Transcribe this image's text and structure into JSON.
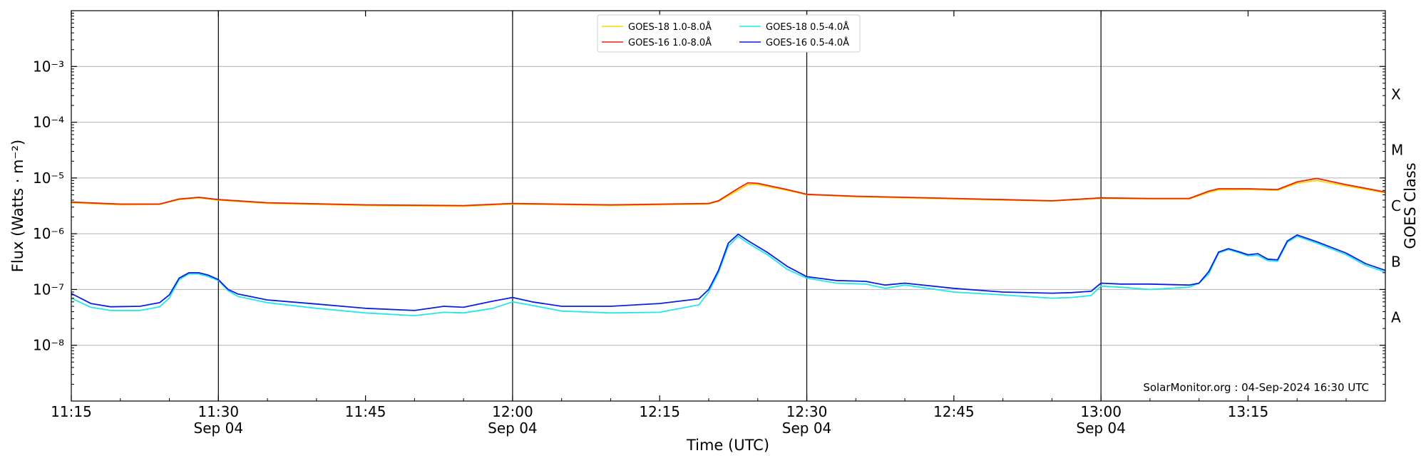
{
  "chart_data": {
    "type": "line",
    "xlabel": "Time (UTC)",
    "ylabel": "Flux (Watts · m⁻²)",
    "y2label": "GOES Class",
    "y_scale": "log",
    "ylim": [
      1e-09,
      0.01
    ],
    "xlim": [
      "2024-09-04T11:15",
      "2024-09-04T13:29"
    ],
    "x_ticks": [
      {
        "t": "2024-09-04T11:15",
        "label": "11:15",
        "sub": ""
      },
      {
        "t": "2024-09-04T11:30",
        "label": "11:30",
        "sub": "Sep 04"
      },
      {
        "t": "2024-09-04T11:45",
        "label": "11:45",
        "sub": ""
      },
      {
        "t": "2024-09-04T12:00",
        "label": "12:00",
        "sub": "Sep 04"
      },
      {
        "t": "2024-09-04T12:15",
        "label": "12:15",
        "sub": ""
      },
      {
        "t": "2024-09-04T12:30",
        "label": "12:30",
        "sub": "Sep 04"
      },
      {
        "t": "2024-09-04T12:45",
        "label": "12:45",
        "sub": ""
      },
      {
        "t": "2024-09-04T13:00",
        "label": "13:00",
        "sub": "Sep 04"
      },
      {
        "t": "2024-09-04T13:15",
        "label": "13:15",
        "sub": ""
      }
    ],
    "y_ticks": [
      {
        "exp": -8,
        "label": "10⁻⁸"
      },
      {
        "exp": -7,
        "label": "10⁻⁷"
      },
      {
        "exp": -6,
        "label": "10⁻⁶"
      },
      {
        "exp": -5,
        "label": "10⁻⁵"
      },
      {
        "exp": -4,
        "label": "10⁻⁴"
      },
      {
        "exp": -3,
        "label": "10⁻³"
      }
    ],
    "goes_classes": [
      {
        "label": "A",
        "flux": 3.16e-08
      },
      {
        "label": "B",
        "flux": 3.16e-07
      },
      {
        "label": "C",
        "flux": 3.16e-06
      },
      {
        "label": "M",
        "flux": 3.16e-05
      },
      {
        "label": "X",
        "flux": 0.000316
      }
    ],
    "day_markers": [
      "2024-09-04T11:30",
      "2024-09-04T12:00",
      "2024-09-04T12:30",
      "2024-09-04T13:00"
    ],
    "grid": "horizontal",
    "legend_position": "top-center",
    "credit": "SolarMonitor.org : 04-Sep-2024 16:30 UTC",
    "series": [
      {
        "name": "GOES-18 1.0-8.0Å",
        "color": "#ffd400",
        "x": [
          "11:15",
          "11:20",
          "11:24",
          "11:26",
          "11:28",
          "11:30",
          "11:35",
          "11:45",
          "11:55",
          "12:00",
          "12:10",
          "12:20",
          "12:21",
          "12:23",
          "12:24",
          "12:25",
          "12:28",
          "12:30",
          "12:35",
          "12:40",
          "12:50",
          "12:55",
          "13:00",
          "13:05",
          "13:09",
          "13:11",
          "13:12",
          "13:15",
          "13:18",
          "13:20",
          "13:22",
          "13:25",
          "13:29"
        ],
        "values": [
          3.6e-06,
          3.3e-06,
          3.35e-06,
          4.1e-06,
          4.4e-06,
          4e-06,
          3.5e-06,
          3.2e-06,
          3.1e-06,
          3.4e-06,
          3.2e-06,
          3.4e-06,
          3.8e-06,
          6e-06,
          7.6e-06,
          7.6e-06,
          6e-06,
          5e-06,
          4.6e-06,
          4.4e-06,
          4e-06,
          3.85e-06,
          4.3e-06,
          4.2e-06,
          4.2e-06,
          5.5e-06,
          6.1e-06,
          6.2e-06,
          6e-06,
          8e-06,
          9e-06,
          7.2e-06,
          5.4e-06
        ]
      },
      {
        "name": "GOES-16 1.0-8.0Å",
        "color": "#e8230e",
        "x": [
          "11:15",
          "11:20",
          "11:24",
          "11:26",
          "11:28",
          "11:30",
          "11:35",
          "11:45",
          "11:55",
          "12:00",
          "12:10",
          "12:20",
          "12:21",
          "12:23",
          "12:24",
          "12:25",
          "12:28",
          "12:30",
          "12:35",
          "12:40",
          "12:50",
          "12:55",
          "13:00",
          "13:05",
          "13:09",
          "13:11",
          "13:12",
          "13:15",
          "13:18",
          "13:20",
          "13:22",
          "13:25",
          "13:29"
        ],
        "values": [
          3.7e-06,
          3.4e-06,
          3.4e-06,
          4.2e-06,
          4.5e-06,
          4.1e-06,
          3.6e-06,
          3.3e-06,
          3.2e-06,
          3.5e-06,
          3.3e-06,
          3.5e-06,
          3.9e-06,
          6.5e-06,
          8.2e-06,
          8e-06,
          6.2e-06,
          5.1e-06,
          4.7e-06,
          4.5e-06,
          4.1e-06,
          3.9e-06,
          4.4e-06,
          4.3e-06,
          4.3e-06,
          5.8e-06,
          6.4e-06,
          6.4e-06,
          6.2e-06,
          8.5e-06,
          9.8e-06,
          7.6e-06,
          5.6e-06
        ]
      },
      {
        "name": "GOES-18 0.5-4.0Å",
        "color": "#22e6ee",
        "x": [
          "11:15",
          "11:17",
          "11:19",
          "11:22",
          "11:24",
          "11:25",
          "11:26",
          "11:27",
          "11:28",
          "11:29",
          "11:30",
          "11:31",
          "11:32",
          "11:35",
          "11:40",
          "11:45",
          "11:50",
          "11:53",
          "11:55",
          "11:58",
          "12:00",
          "12:02",
          "12:05",
          "12:10",
          "12:15",
          "12:19",
          "12:20",
          "12:21",
          "12:22",
          "12:23",
          "12:24",
          "12:26",
          "12:28",
          "12:30",
          "12:33",
          "12:36",
          "12:38",
          "12:40",
          "12:45",
          "12:50",
          "12:55",
          "12:57",
          "12:59",
          "13:00",
          "13:02",
          "13:05",
          "13:09",
          "13:10",
          "13:11",
          "13:12",
          "13:13",
          "13:14",
          "13:15",
          "13:16",
          "13:17",
          "13:18",
          "13:19",
          "13:20",
          "13:22",
          "13:25",
          "13:27",
          "13:29"
        ],
        "values": [
          7e-08,
          4.8e-08,
          4.2e-08,
          4.2e-08,
          4.9e-08,
          7e-08,
          1.5e-07,
          1.9e-07,
          1.9e-07,
          1.7e-07,
          1.45e-07,
          9.5e-08,
          7.5e-08,
          5.8e-08,
          4.6e-08,
          3.8e-08,
          3.4e-08,
          3.9e-08,
          3.8e-08,
          4.6e-08,
          6e-08,
          5.2e-08,
          4.1e-08,
          3.8e-08,
          3.9e-08,
          5.3e-08,
          9e-08,
          2e-07,
          6e-07,
          9e-07,
          6.8e-07,
          4.2e-07,
          2.3e-07,
          1.6e-07,
          1.3e-07,
          1.25e-07,
          1.05e-07,
          1.2e-07,
          9e-08,
          8e-08,
          7e-08,
          7.2e-08,
          7.8e-08,
          1.15e-07,
          1.1e-07,
          1e-07,
          1.1e-07,
          1.3e-07,
          1.9e-07,
          4.5e-07,
          5.2e-07,
          4.6e-07,
          4e-07,
          4.1e-07,
          3.3e-07,
          3.2e-07,
          7e-07,
          9e-07,
          6.8e-07,
          4.2e-07,
          2.7e-07,
          2.05e-07
        ]
      },
      {
        "name": "GOES-16 0.5-4.0Å",
        "color": "#0a1fe0",
        "x": [
          "11:15",
          "11:17",
          "11:19",
          "11:22",
          "11:24",
          "11:25",
          "11:26",
          "11:27",
          "11:28",
          "11:29",
          "11:30",
          "11:31",
          "11:32",
          "11:35",
          "11:40",
          "11:45",
          "11:50",
          "11:53",
          "11:55",
          "11:58",
          "12:00",
          "12:02",
          "12:05",
          "12:10",
          "12:15",
          "12:19",
          "12:20",
          "12:21",
          "12:22",
          "12:23",
          "12:24",
          "12:26",
          "12:28",
          "12:30",
          "12:33",
          "12:36",
          "12:38",
          "12:40",
          "12:45",
          "12:50",
          "12:55",
          "12:57",
          "12:59",
          "13:00",
          "13:02",
          "13:05",
          "13:09",
          "13:10",
          "13:11",
          "13:12",
          "13:13",
          "13:14",
          "13:15",
          "13:16",
          "13:17",
          "13:18",
          "13:19",
          "13:20",
          "13:22",
          "13:25",
          "13:27",
          "13:29"
        ],
        "values": [
          8.5e-08,
          5.6e-08,
          4.9e-08,
          5e-08,
          5.8e-08,
          8e-08,
          1.6e-07,
          2e-07,
          2e-07,
          1.8e-07,
          1.5e-07,
          1e-07,
          8.3e-08,
          6.5e-08,
          5.5e-08,
          4.6e-08,
          4.2e-08,
          5e-08,
          4.8e-08,
          6.2e-08,
          7.2e-08,
          6e-08,
          5e-08,
          5e-08,
          5.6e-08,
          6.8e-08,
          1e-07,
          2.2e-07,
          6.8e-07,
          9.8e-07,
          7.5e-07,
          4.6e-07,
          2.6e-07,
          1.7e-07,
          1.45e-07,
          1.4e-07,
          1.2e-07,
          1.3e-07,
          1.05e-07,
          9e-08,
          8.6e-08,
          8.8e-08,
          9.3e-08,
          1.3e-07,
          1.25e-07,
          1.25e-07,
          1.2e-07,
          1.3e-07,
          2.1e-07,
          4.7e-07,
          5.4e-07,
          4.8e-07,
          4.2e-07,
          4.4e-07,
          3.5e-07,
          3.4e-07,
          7.4e-07,
          9.5e-07,
          7.2e-07,
          4.5e-07,
          2.9e-07,
          2.2e-07
        ]
      }
    ]
  }
}
